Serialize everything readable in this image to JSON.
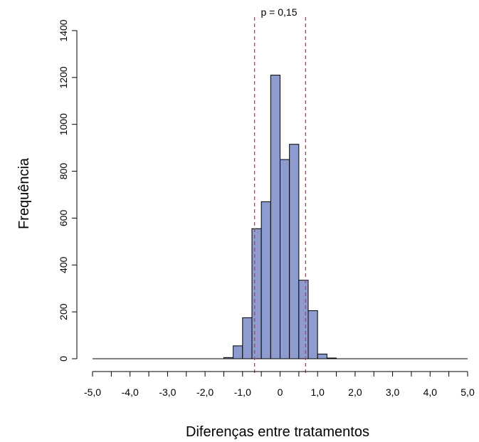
{
  "chart_data": {
    "type": "bar",
    "title": "",
    "xlabel": "Diferenças entre tratamentos",
    "ylabel": "Frequência",
    "xlim": [
      -5.0,
      5.0
    ],
    "ylim": [
      0,
      1400
    ],
    "x_ticks": [
      -5,
      -4.5,
      -4,
      -3.5,
      -3,
      -2.5,
      -2,
      -1.5,
      -1,
      -0.5,
      0,
      0.5,
      1,
      1.5,
      2,
      2.5,
      3,
      3.5,
      4,
      4.5,
      5
    ],
    "x_tick_labels": [
      "-5,0",
      "-4,0",
      "-3,0",
      "-2,0",
      "-1,0",
      "0",
      "1,0",
      "2,0",
      "3,0",
      "4,0",
      "5,0"
    ],
    "x_tick_label_values": [
      -5,
      -4,
      -3,
      -2,
      -1,
      0,
      1,
      2,
      3,
      4,
      5
    ],
    "y_ticks": [
      0,
      200,
      400,
      600,
      800,
      1000,
      1200,
      1400
    ],
    "y_tick_labels": [
      "0",
      "200",
      "400",
      "600",
      "800",
      "1000",
      "1200",
      "1400"
    ],
    "bin_width": 0.25,
    "bins": [
      {
        "x0": -5.0,
        "x1": -4.75,
        "count": 0
      },
      {
        "x0": -4.75,
        "x1": -4.5,
        "count": 0
      },
      {
        "x0": -4.5,
        "x1": -4.25,
        "count": 0
      },
      {
        "x0": -4.25,
        "x1": -4.0,
        "count": 0
      },
      {
        "x0": -4.0,
        "x1": -3.75,
        "count": 0
      },
      {
        "x0": -3.75,
        "x1": -3.5,
        "count": 0
      },
      {
        "x0": -3.5,
        "x1": -3.25,
        "count": 0
      },
      {
        "x0": -3.25,
        "x1": -3.0,
        "count": 0
      },
      {
        "x0": -3.0,
        "x1": -2.75,
        "count": 0
      },
      {
        "x0": -2.75,
        "x1": -2.5,
        "count": 0
      },
      {
        "x0": -2.5,
        "x1": -2.25,
        "count": 0
      },
      {
        "x0": -2.25,
        "x1": -2.0,
        "count": 0
      },
      {
        "x0": -2.0,
        "x1": -1.75,
        "count": 0
      },
      {
        "x0": -1.75,
        "x1": -1.5,
        "count": 0
      },
      {
        "x0": -1.5,
        "x1": -1.25,
        "count": 5
      },
      {
        "x0": -1.25,
        "x1": -1.0,
        "count": 55
      },
      {
        "x0": -1.0,
        "x1": -0.75,
        "count": 175
      },
      {
        "x0": -0.75,
        "x1": -0.5,
        "count": 555
      },
      {
        "x0": -0.5,
        "x1": -0.25,
        "count": 670
      },
      {
        "x0": -0.25,
        "x1": 0.0,
        "count": 1210
      },
      {
        "x0": 0.0,
        "x1": 0.25,
        "count": 850
      },
      {
        "x0": 0.25,
        "x1": 0.5,
        "count": 915
      },
      {
        "x0": 0.5,
        "x1": 0.75,
        "count": 335
      },
      {
        "x0": 0.75,
        "x1": 1.0,
        "count": 205
      },
      {
        "x0": 1.0,
        "x1": 1.25,
        "count": 20
      },
      {
        "x0": 1.25,
        "x1": 1.5,
        "count": 3
      },
      {
        "x0": 1.5,
        "x1": 1.75,
        "count": 0
      },
      {
        "x0": 1.75,
        "x1": 2.0,
        "count": 0
      },
      {
        "x0": 2.0,
        "x1": 2.25,
        "count": 0
      },
      {
        "x0": 2.25,
        "x1": 2.5,
        "count": 0
      },
      {
        "x0": 2.5,
        "x1": 2.75,
        "count": 0
      },
      {
        "x0": 2.75,
        "x1": 3.0,
        "count": 0
      },
      {
        "x0": 3.0,
        "x1": 3.25,
        "count": 0
      },
      {
        "x0": 3.25,
        "x1": 3.5,
        "count": 0
      },
      {
        "x0": 3.5,
        "x1": 3.75,
        "count": 0
      },
      {
        "x0": 3.75,
        "x1": 4.0,
        "count": 0
      },
      {
        "x0": 4.0,
        "x1": 4.25,
        "count": 0
      },
      {
        "x0": 4.25,
        "x1": 4.5,
        "count": 0
      },
      {
        "x0": 4.5,
        "x1": 4.75,
        "count": 0
      },
      {
        "x0": 4.75,
        "x1": 5.0,
        "count": 0
      }
    ],
    "reference_lines": [
      {
        "x": -0.68,
        "style": "dashed",
        "color": "#e0303a"
      },
      {
        "x": 0.68,
        "style": "dashed",
        "color": "#e0303a"
      }
    ],
    "annotation": "p = 0,15",
    "bar_fill": "#8e9bcf",
    "bar_stroke": "#000000",
    "grid": false,
    "legend": "none"
  }
}
